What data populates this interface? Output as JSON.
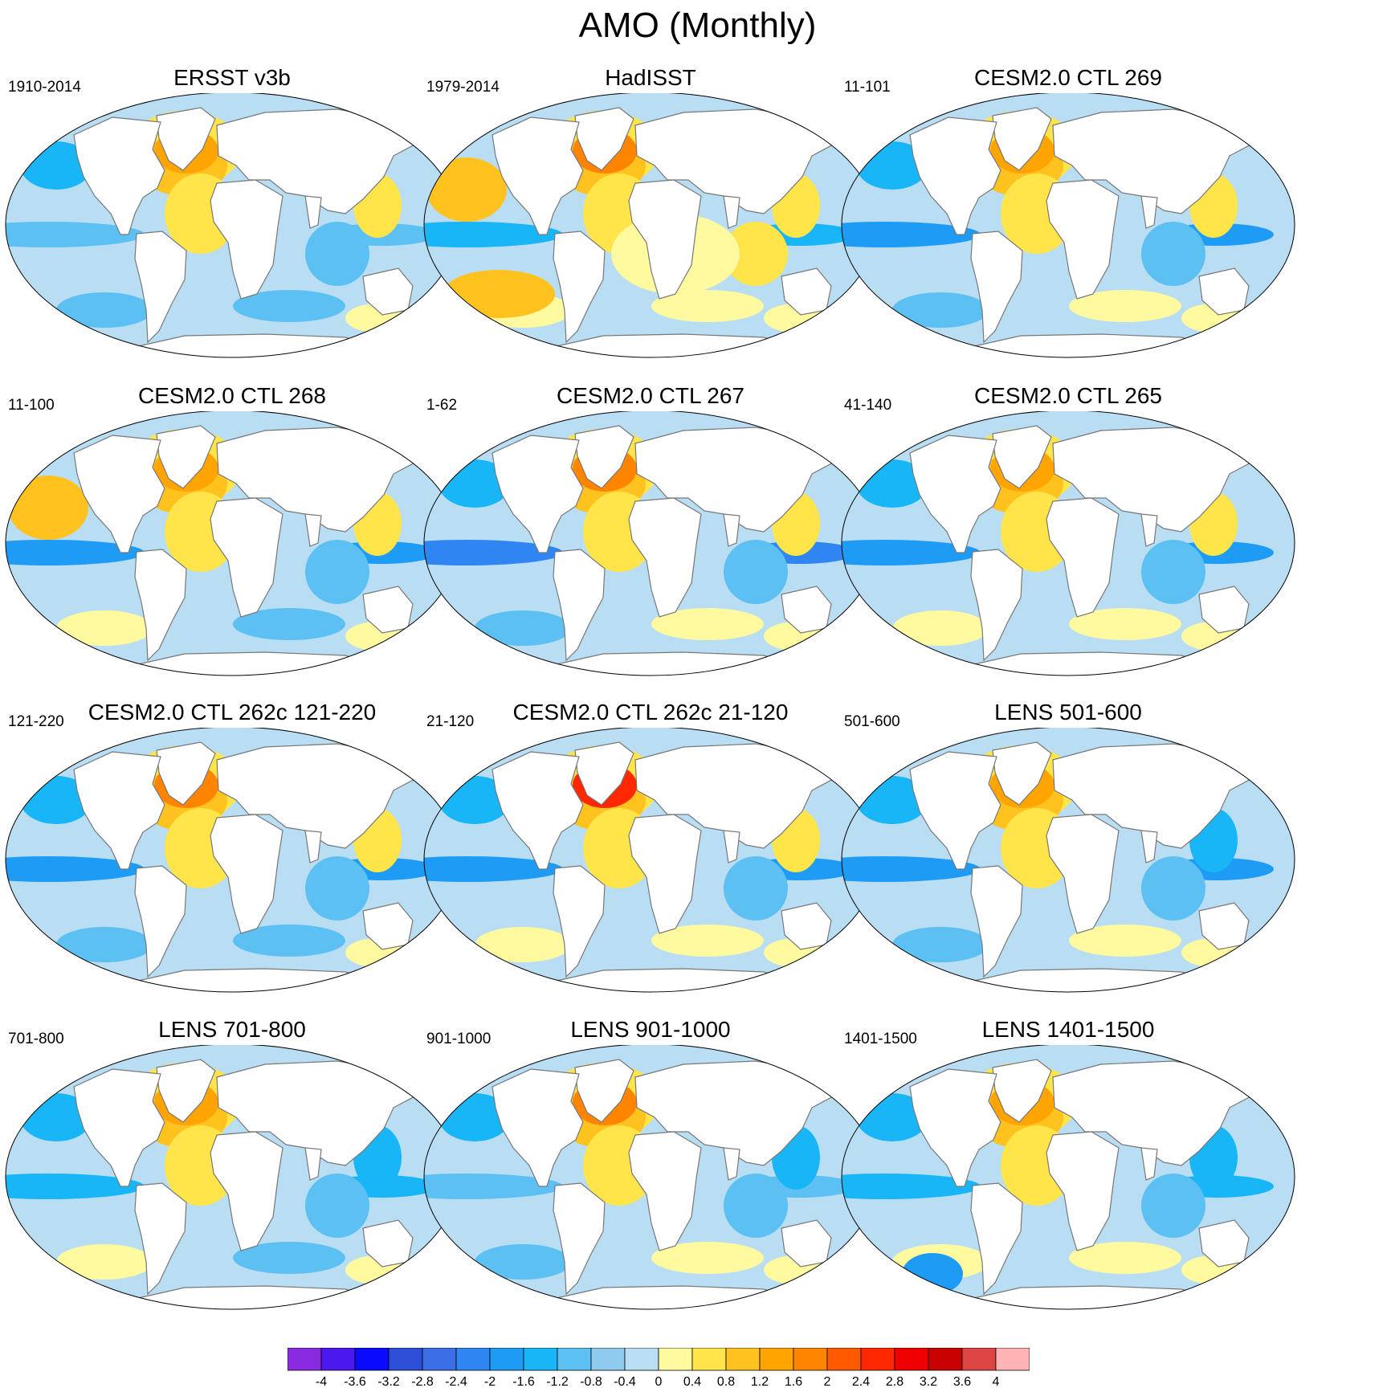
{
  "title": "AMO (Monthly)",
  "colors": {
    "ocean_base": "#b9def3",
    "land": "#ffffff",
    "coast": "#777777"
  },
  "panels": [
    {
      "title": "ERSST v3b",
      "period": "1910-2014",
      "variant": 0
    },
    {
      "title": "HadISST",
      "period": "1979-2014",
      "variant": 1
    },
    {
      "title": "CESM2.0 CTL 269",
      "period": "11-101",
      "variant": 2
    },
    {
      "title": "CESM2.0 CTL 268",
      "period": "11-100",
      "variant": 3
    },
    {
      "title": "CESM2.0 CTL 267",
      "period": "1-62",
      "variant": 4
    },
    {
      "title": "CESM2.0 CTL 265",
      "period": "41-140",
      "variant": 5
    },
    {
      "title": "CESM2.0 CTL 262c 121-220",
      "period": "121-220",
      "variant": 6
    },
    {
      "title": "CESM2.0 CTL 262c 21-120",
      "period": "21-120",
      "variant": 7
    },
    {
      "title": "LENS 501-600",
      "period": "501-600",
      "variant": 8
    },
    {
      "title": "LENS 701-800",
      "period": "701-800",
      "variant": 9
    },
    {
      "title": "LENS 901-1000",
      "period": "901-1000",
      "variant": 10
    },
    {
      "title": "LENS 1401-1500",
      "period": "1401-1500",
      "variant": 11
    }
  ],
  "colorbar": {
    "labels": [
      "-4",
      "-3.6",
      "-3.2",
      "-2.8",
      "-2.4",
      "-2",
      "-1.6",
      "-1.2",
      "-0.8",
      "-0.4",
      "0",
      "0.4",
      "0.8",
      "1.2",
      "1.6",
      "2",
      "2.4",
      "2.8",
      "3.2",
      "3.6",
      "4"
    ],
    "colors": [
      "#8a2be2",
      "#4b18f0",
      "#0a0aff",
      "#2e4fd8",
      "#3c6ee8",
      "#2f86f3",
      "#1e9bf5",
      "#19b6f7",
      "#5cc0f2",
      "#8fcbef",
      "#b9def3",
      "#fffaa0",
      "#ffe44a",
      "#ffc21e",
      "#ffa400",
      "#ff8500",
      "#ff5a00",
      "#ff2800",
      "#f00000",
      "#c80000",
      "#dd4444",
      "#ffb3b3"
    ]
  }
}
